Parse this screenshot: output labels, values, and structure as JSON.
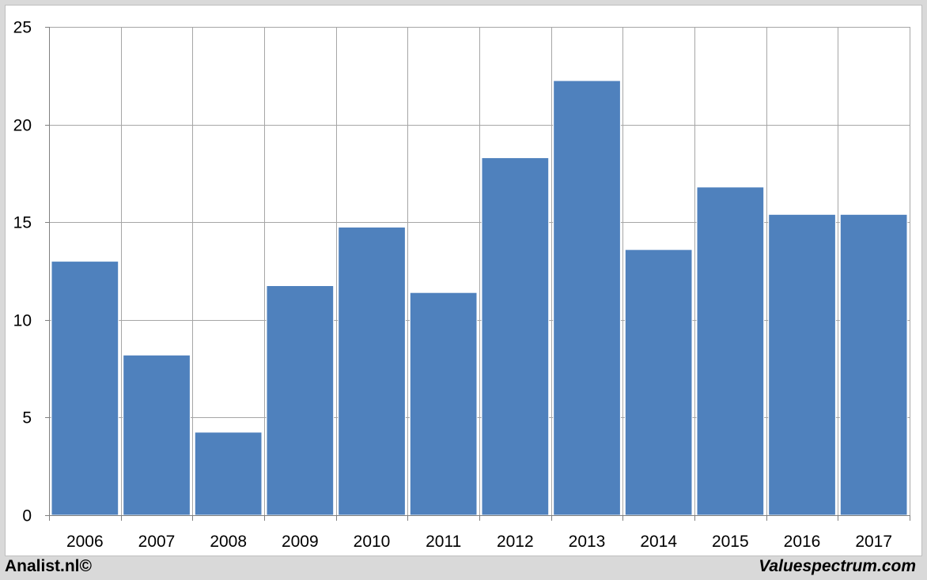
{
  "chart_data": {
    "type": "bar",
    "categories": [
      "2006",
      "2007",
      "2008",
      "2009",
      "2010",
      "2011",
      "2012",
      "2013",
      "2014",
      "2015",
      "2016",
      "2017"
    ],
    "values": [
      13.0,
      8.2,
      4.25,
      11.75,
      14.75,
      11.4,
      18.3,
      22.25,
      13.6,
      16.8,
      15.4,
      15.4
    ],
    "ylim": [
      0,
      25
    ],
    "yticks": [
      0,
      5,
      10,
      15,
      20,
      25
    ],
    "grid": true,
    "bar_color": "#4f81bd",
    "grid_color": "#a6a6a6"
  },
  "footer": {
    "left": "Analist.nl©",
    "right": "Valuespectrum.com"
  }
}
